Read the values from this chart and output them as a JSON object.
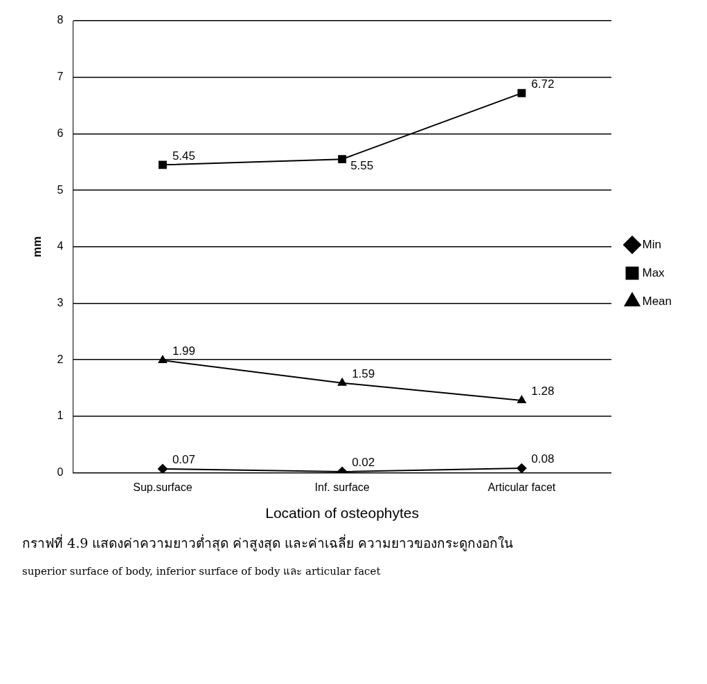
{
  "chart_data": {
    "type": "line",
    "xlabel": "Location of osteophytes",
    "ylabel": "mm",
    "categories": [
      "Sup.surface",
      "Inf. surface",
      "Articular facet"
    ],
    "series": [
      {
        "name": "Min",
        "color": "#000000",
        "marker": "diamond",
        "values": [
          0.07,
          0.02,
          0.08
        ]
      },
      {
        "name": "Max",
        "color": "#000000",
        "marker": "square",
        "values": [
          5.45,
          5.55,
          6.72
        ]
      },
      {
        "name": "Mean",
        "color": "#000000",
        "marker": "triangle",
        "values": [
          1.99,
          1.59,
          1.28
        ]
      }
    ],
    "ylim": [
      0,
      8
    ],
    "yticks": [
      0,
      1,
      2,
      3,
      4,
      5,
      6,
      7,
      8
    ],
    "grid": "y",
    "legend": "right",
    "data_labels": true,
    "line_style": "solid",
    "annotations": [
      "กราฟที่ 4.9 แสดงค่าความยาวต่ำสุด ค่าสูงสุด และค่าเฉลี่ย ความยาวของกระดูกงอกใน",
      "superior surface of body, inferior surface of body และ articular facet"
    ]
  }
}
